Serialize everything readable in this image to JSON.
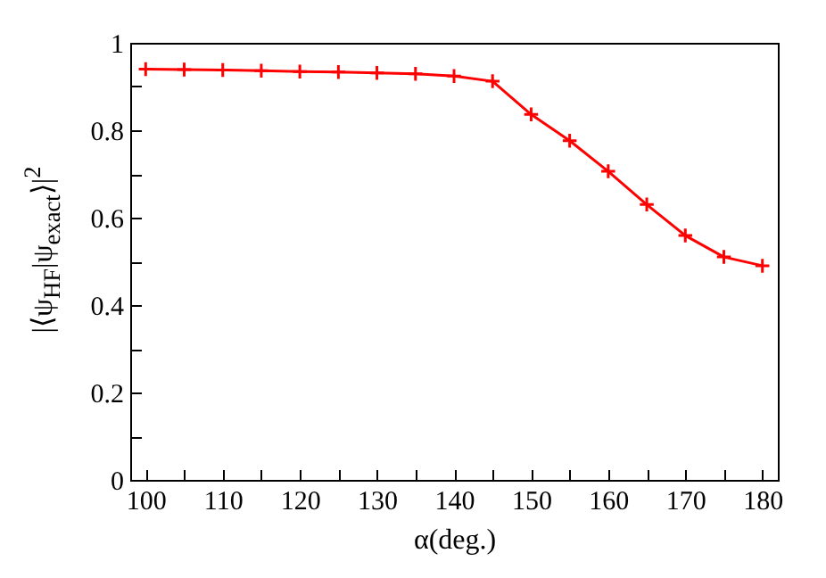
{
  "chart_data": {
    "type": "line",
    "xlabel": "α(deg.)",
    "ylabel": "|⟨ψ$_{HF}$|ψ$_{exact}$⟩|$^{2}$",
    "x": [
      100,
      105,
      110,
      115,
      120,
      125,
      130,
      135,
      140,
      145,
      150,
      155,
      160,
      165,
      170,
      175,
      180
    ],
    "series": [
      {
        "color": "#ff0000",
        "values": [
          0.94,
          0.939,
          0.938,
          0.936,
          0.934,
          0.933,
          0.931,
          0.929,
          0.924,
          0.912,
          0.836,
          0.776,
          0.706,
          0.63,
          0.559,
          0.51,
          0.49
        ]
      }
    ],
    "xlim": [
      98,
      182
    ],
    "ylim": [
      0,
      1
    ],
    "xticks": [
      100,
      {
        "value": 105,
        "label": null
      },
      110,
      {
        "value": 115,
        "label": null
      },
      120,
      {
        "value": 125,
        "label": null
      },
      130,
      {
        "value": 135,
        "label": null
      },
      140,
      {
        "value": 145,
        "label": null
      },
      150,
      {
        "value": 155,
        "label": null
      },
      160,
      {
        "value": 165,
        "label": null
      },
      170,
      {
        "value": 175,
        "label": null
      },
      180
    ],
    "yticks": [
      0,
      {
        "value": 0.1,
        "label": null
      },
      0.2,
      {
        "value": 0.3,
        "label": null
      },
      0.4,
      {
        "value": 0.5,
        "label": null
      },
      0.6,
      {
        "value": 0.7,
        "label": null
      },
      0.8,
      {
        "value": 0.9,
        "label": null
      },
      1
    ],
    "marker": "cross",
    "line_style": "solid",
    "grid": false,
    "legend": false
  }
}
